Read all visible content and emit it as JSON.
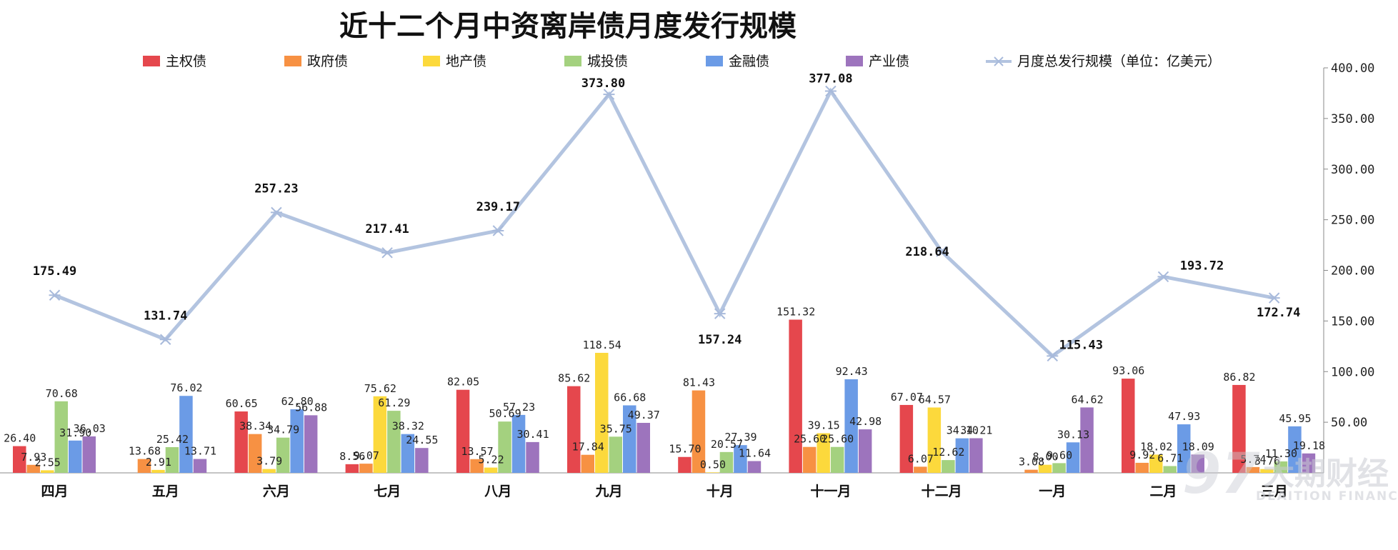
{
  "chart_data": {
    "type": "bar",
    "title": "近十二个月中资离岸债月度发行规模",
    "categories": [
      "四月",
      "五月",
      "六月",
      "七月",
      "八月",
      "九月",
      "十月",
      "十一月",
      "十二月",
      "一月",
      "二月",
      "三月"
    ],
    "series": [
      {
        "name": "主权债",
        "color": "#e5474d",
        "values": [
          26.4,
          null,
          60.65,
          8.56,
          82.05,
          85.62,
          15.7,
          151.32,
          67.07,
          null,
          93.06,
          86.82
        ],
        "labels": [
          "26.40",
          "",
          "60.65",
          "8.56",
          "82.05",
          "85.62",
          "15.70",
          "151.32",
          "67.07",
          "",
          "93.06",
          "86.82"
        ]
      },
      {
        "name": "政府债",
        "color": "#f79143",
        "values": [
          7.93,
          13.68,
          38.34,
          9.07,
          13.57,
          17.84,
          81.43,
          25.6,
          6.07,
          3.08,
          9.92,
          5.74
        ],
        "labels": [
          "7.93",
          "13.68",
          "38.34",
          "9.07",
          "13.57",
          "17.84",
          "81.43",
          "25.60",
          "6.07",
          "3.08",
          "9.92",
          "5.74"
        ]
      },
      {
        "name": "地产债",
        "color": "#fcd93c",
        "values": [
          2.55,
          2.91,
          3.79,
          75.62,
          5.22,
          118.54,
          0.5,
          39.15,
          64.57,
          8.0,
          18.02,
          3.76
        ],
        "labels": [
          "2.55",
          "2.91",
          "3.79",
          "75.62",
          "5.22",
          "118.54",
          "0.50",
          "39.15",
          "64.57",
          "8.00",
          "18.02",
          "3.76"
        ]
      },
      {
        "name": "城投债",
        "color": "#a4d17f",
        "values": [
          70.68,
          25.42,
          34.79,
          61.29,
          50.69,
          35.75,
          20.57,
          25.6,
          12.62,
          9.6,
          6.71,
          11.3
        ],
        "labels": [
          "70.68",
          "25.42",
          "34.79",
          "61.29",
          "50.69",
          "35.75",
          "20.57",
          "25.60",
          "12.62",
          "9.60",
          "6.71",
          "11.30"
        ]
      },
      {
        "name": "金融债",
        "color": "#6b9be6",
        "values": [
          31.9,
          76.02,
          62.8,
          38.32,
          57.23,
          66.68,
          27.39,
          92.43,
          34.1,
          30.13,
          47.93,
          45.95
        ],
        "labels": [
          "31.90",
          "76.02",
          "62.80",
          "38.32",
          "57.23",
          "66.68",
          "27.39",
          "92.43",
          "34.10",
          "30.13",
          "47.93",
          "45.95"
        ]
      },
      {
        "name": "产业债",
        "color": "#9d74bd",
        "values": [
          36.03,
          13.71,
          56.88,
          24.55,
          30.41,
          49.37,
          11.64,
          42.98,
          34.21,
          64.62,
          18.09,
          19.18
        ],
        "labels": [
          "36.03",
          "13.71",
          "56.88",
          "24.55",
          "30.41",
          "49.37",
          "11.64",
          "42.98",
          "34.21",
          "64.62",
          "18.09",
          "19.18"
        ]
      }
    ],
    "line_series": {
      "name": "月度总发行规模（单位：亿美元）",
      "color": "#b3c4e0",
      "values": [
        175.49,
        131.74,
        257.23,
        217.41,
        239.17,
        373.8,
        157.24,
        377.08,
        218.64,
        115.43,
        193.72,
        172.74
      ],
      "labels": [
        "175.49",
        "131.74",
        "257.23",
        "217.41",
        "239.17",
        "373.80",
        "157.24",
        "377.08",
        "218.64",
        "115.43",
        "193.72",
        "172.74"
      ]
    },
    "y_axis": {
      "position": "right",
      "ylim": [
        0,
        400
      ],
      "ticks": [
        50,
        100,
        150,
        200,
        250,
        300,
        350,
        400
      ],
      "tick_labels": [
        "50.00",
        "100.00",
        "150.00",
        "200.00",
        "250.00",
        "300.00",
        "350.00",
        "400.00"
      ]
    },
    "legend_position": "top",
    "grid": false
  },
  "watermark": {
    "logo": "97",
    "name": "大期财经",
    "subtitle": "DEAITION FINANCE"
  }
}
